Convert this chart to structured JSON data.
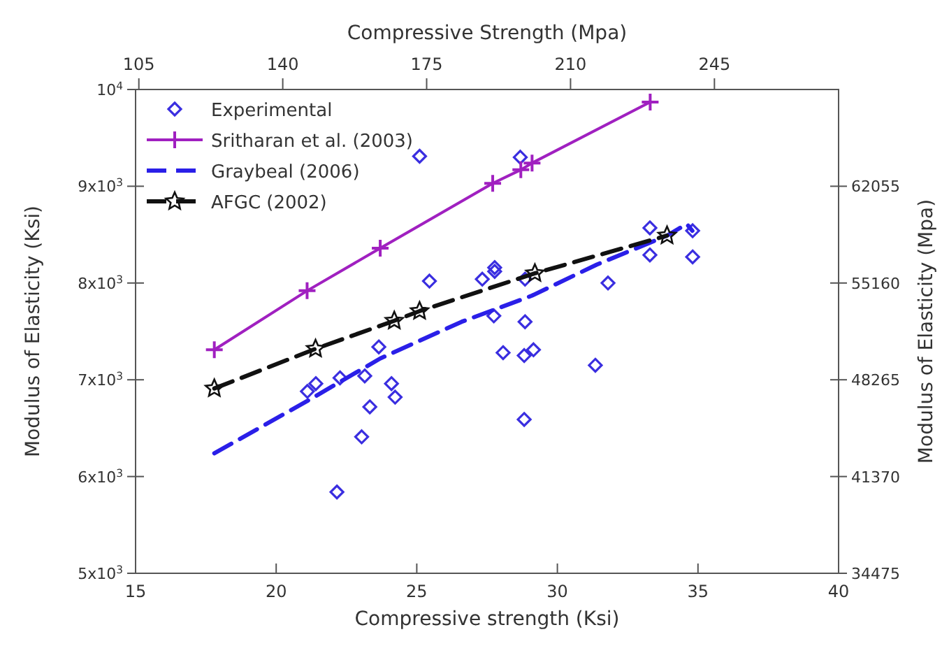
{
  "chart_data": {
    "type": "scatter",
    "xlabel": "Compressive strength (Ksi)",
    "ylabel": "Modulus of Elasticity (Ksi)",
    "x2label": "Compressive Strength (Mpa)",
    "y2label": "Modulus of Elasticity (Mpa)",
    "xlim": [
      15,
      40
    ],
    "xticks": [
      15,
      20,
      25,
      30,
      35,
      40
    ],
    "ylim": [
      5000,
      10000
    ],
    "yticks": [
      {
        "value": 5000,
        "label": "5x10$^{3}$"
      },
      {
        "value": 6000,
        "label": "6x10$^{3}$"
      },
      {
        "value": 7000,
        "label": "7x10$^{3}$"
      },
      {
        "value": 8000,
        "label": "8x10$^{3}$"
      },
      {
        "value": 9000,
        "label": "9x10$^{3}$"
      },
      {
        "value": 10000,
        "label": "10$^{4}$"
      }
    ],
    "x2lim": [
      104.2,
      275.2
    ],
    "x2ticks": [
      105,
      140,
      175,
      210,
      245
    ],
    "y2lim": [
      34475,
      68950
    ],
    "y2ticks": [
      34475,
      41370,
      48265,
      55160,
      62055
    ],
    "grid": false,
    "legend": "top left",
    "series": [
      {
        "name": "Experimental",
        "marker": "diamond",
        "color": "#3a2ee0",
        "x": [
          25.1,
          25.45,
          27.33,
          23.65,
          21.11,
          21.41,
          22.27,
          23.15,
          24.1,
          24.23,
          23.33,
          23.04,
          22.16,
          28.68,
          27.77,
          27.77,
          28.85,
          27.74,
          28.85,
          28.07,
          28.82,
          29.15,
          31.35,
          28.82,
          31.8,
          33.29,
          33.29,
          34.81,
          34.81
        ],
        "values": [
          9310,
          8020,
          8040,
          7340,
          6880,
          6960,
          7020,
          7040,
          6960,
          6820,
          6720,
          6410,
          5840,
          9300,
          8160,
          8120,
          8040,
          7660,
          7600,
          7280,
          7250,
          7310,
          7150,
          6590,
          8000,
          8570,
          8290,
          8540,
          8270
        ]
      },
      {
        "name": "Sritharan et al. (2003)",
        "type": "line",
        "marker": "cross",
        "line_style": "solid",
        "color": "#a020c0",
        "x": [
          17.8,
          21.1,
          23.7,
          27.7,
          28.7,
          29.1,
          33.3
        ],
        "values": [
          7310,
          7920,
          8360,
          9030,
          9170,
          9240,
          9870
        ]
      },
      {
        "name": "Graybeal (2006)",
        "type": "line",
        "marker": "none",
        "line_style": "dashed",
        "color": "#2a1fe8",
        "x": [
          17.8,
          21.1,
          23.7,
          26.6,
          29.1,
          31.4,
          33.9,
          34.6,
          34.8
        ],
        "values": [
          6240,
          6780,
          7220,
          7600,
          7870,
          8190,
          8490,
          8610,
          8540
        ]
      },
      {
        "name": "AFGC (2002)",
        "type": "line",
        "marker": "star",
        "line_style": "dashed",
        "color": "#111111",
        "x": [
          17.8,
          21.4,
          24.2,
          25.1,
          29.2,
          33.9
        ],
        "values": [
          6910,
          7320,
          7610,
          7710,
          8100,
          8490
        ]
      }
    ]
  }
}
